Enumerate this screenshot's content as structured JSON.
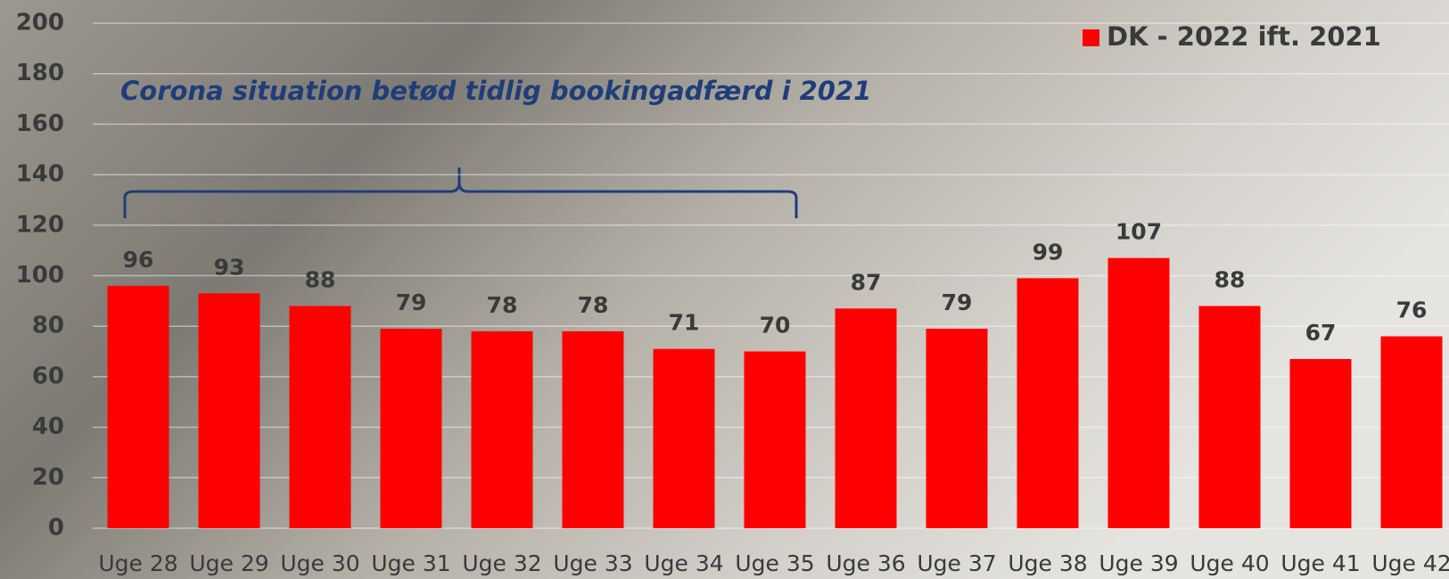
{
  "chart_data": {
    "type": "bar",
    "annotation": "Corona situation betød tidlig bookingadfærd i 2021",
    "categories": [
      "Uge 28",
      "Uge 29",
      "Uge 30",
      "Uge 31",
      "Uge 32",
      "Uge 33",
      "Uge 34",
      "Uge 35",
      "Uge 36",
      "Uge 37",
      "Uge 38",
      "Uge 39",
      "Uge 40",
      "Uge 41",
      "Uge 42"
    ],
    "series": [
      {
        "name": "DK - 2022 ift. 2021",
        "color": "#ff0000",
        "values": [
          96,
          93,
          88,
          79,
          78,
          78,
          71,
          70,
          87,
          79,
          99,
          107,
          88,
          67,
          76
        ]
      }
    ],
    "ylim": [
      0,
      200
    ],
    "yticks": [
      0,
      20,
      40,
      60,
      80,
      100,
      120,
      140,
      160,
      180,
      200
    ],
    "grid": true,
    "legend": "top-right"
  }
}
